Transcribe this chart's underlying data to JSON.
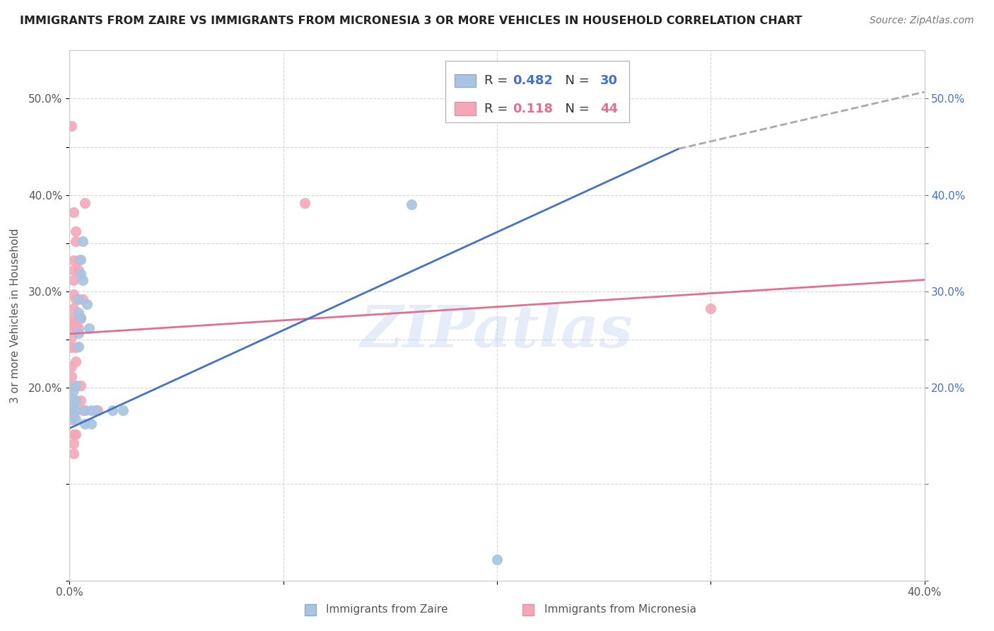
{
  "title": "IMMIGRANTS FROM ZAIRE VS IMMIGRANTS FROM MICRONESIA 3 OR MORE VEHICLES IN HOUSEHOLD CORRELATION CHART",
  "source": "Source: ZipAtlas.com",
  "ylabel": "3 or more Vehicles in Household",
  "xlim": [
    0.0,
    0.4
  ],
  "ylim": [
    0.0,
    0.55
  ],
  "background_color": "#ffffff",
  "grid_color": "#cccccc",
  "legend_zaire": "Immigrants from Zaire",
  "legend_micronesia": "Immigrants from Micronesia",
  "R_zaire": 0.482,
  "N_zaire": 30,
  "R_micronesia": 0.118,
  "N_micronesia": 44,
  "zaire_color": "#a8c4e0",
  "micronesia_color": "#f4a7b9",
  "zaire_line_color": "#4472c4",
  "micronesia_line_color": "#e07090",
  "dashed_color": "#aaaaaa",
  "right_tick_color": "#4472c4",
  "zaire_scatter": [
    [
      0.001,
      0.19
    ],
    [
      0.001,
      0.183
    ],
    [
      0.001,
      0.175
    ],
    [
      0.002,
      0.197
    ],
    [
      0.002,
      0.182
    ],
    [
      0.002,
      0.17
    ],
    [
      0.003,
      0.202
    ],
    [
      0.003,
      0.187
    ],
    [
      0.003,
      0.177
    ],
    [
      0.003,
      0.167
    ],
    [
      0.004,
      0.292
    ],
    [
      0.004,
      0.278
    ],
    [
      0.004,
      0.257
    ],
    [
      0.004,
      0.243
    ],
    [
      0.005,
      0.333
    ],
    [
      0.005,
      0.318
    ],
    [
      0.005,
      0.273
    ],
    [
      0.006,
      0.352
    ],
    [
      0.006,
      0.312
    ],
    [
      0.007,
      0.177
    ],
    [
      0.007,
      0.163
    ],
    [
      0.008,
      0.287
    ],
    [
      0.009,
      0.262
    ],
    [
      0.01,
      0.177
    ],
    [
      0.01,
      0.163
    ],
    [
      0.012,
      0.177
    ],
    [
      0.02,
      0.177
    ],
    [
      0.025,
      0.177
    ],
    [
      0.16,
      0.39
    ],
    [
      0.2,
      0.022
    ]
  ],
  "micronesia_scatter": [
    [
      0.001,
      0.472
    ],
    [
      0.001,
      0.272
    ],
    [
      0.001,
      0.262
    ],
    [
      0.001,
      0.252
    ],
    [
      0.001,
      0.242
    ],
    [
      0.001,
      0.222
    ],
    [
      0.001,
      0.212
    ],
    [
      0.001,
      0.202
    ],
    [
      0.001,
      0.167
    ],
    [
      0.002,
      0.382
    ],
    [
      0.002,
      0.332
    ],
    [
      0.002,
      0.322
    ],
    [
      0.002,
      0.312
    ],
    [
      0.002,
      0.297
    ],
    [
      0.002,
      0.282
    ],
    [
      0.002,
      0.267
    ],
    [
      0.002,
      0.177
    ],
    [
      0.002,
      0.172
    ],
    [
      0.002,
      0.152
    ],
    [
      0.002,
      0.142
    ],
    [
      0.002,
      0.132
    ],
    [
      0.003,
      0.362
    ],
    [
      0.003,
      0.352
    ],
    [
      0.003,
      0.292
    ],
    [
      0.003,
      0.262
    ],
    [
      0.003,
      0.242
    ],
    [
      0.003,
      0.227
    ],
    [
      0.003,
      0.202
    ],
    [
      0.003,
      0.177
    ],
    [
      0.003,
      0.152
    ],
    [
      0.004,
      0.332
    ],
    [
      0.004,
      0.322
    ],
    [
      0.004,
      0.272
    ],
    [
      0.004,
      0.262
    ],
    [
      0.005,
      0.272
    ],
    [
      0.005,
      0.202
    ],
    [
      0.005,
      0.187
    ],
    [
      0.006,
      0.292
    ],
    [
      0.006,
      0.177
    ],
    [
      0.007,
      0.392
    ],
    [
      0.007,
      0.177
    ],
    [
      0.013,
      0.177
    ],
    [
      0.11,
      0.392
    ],
    [
      0.3,
      0.282
    ]
  ],
  "zaire_trendline_solid": [
    [
      0.0,
      0.158
    ],
    [
      0.285,
      0.448
    ]
  ],
  "zaire_trendline_dashed": [
    [
      0.285,
      0.448
    ],
    [
      0.4,
      0.507
    ]
  ],
  "micronesia_trendline": [
    [
      0.0,
      0.256
    ],
    [
      0.4,
      0.312
    ]
  ],
  "xticks": [
    0.0,
    0.1,
    0.2,
    0.3,
    0.4
  ],
  "yticks_left": [
    0.0,
    0.1,
    0.2,
    0.25,
    0.3,
    0.35,
    0.4,
    0.45,
    0.5
  ],
  "ytick_labels_left": [
    "",
    "",
    "20.0%",
    "",
    "30.0%",
    "",
    "40.0%",
    "",
    "50.0%"
  ],
  "ytick_labels_right": [
    "",
    "",
    "20.0%",
    "",
    "30.0%",
    "",
    "40.0%",
    "",
    "50.0%"
  ]
}
